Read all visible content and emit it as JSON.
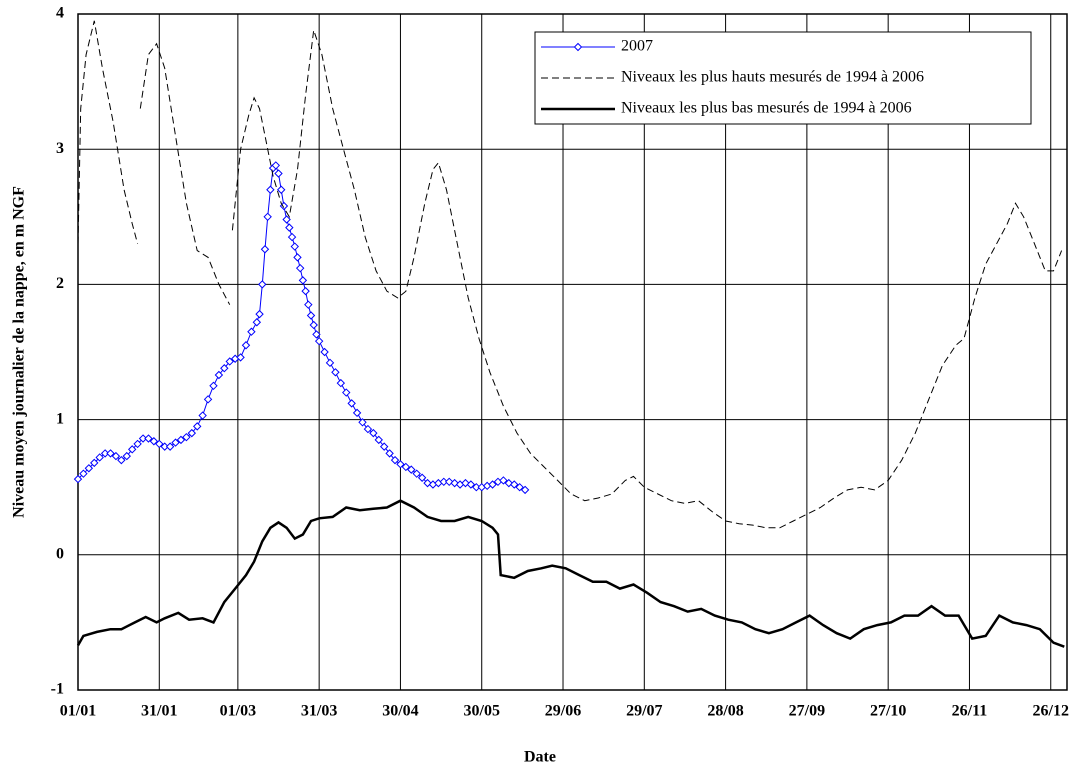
{
  "chart_data": {
    "type": "line",
    "x_label": "Date",
    "y_label": "Niveau moyen journalier de la nappe, en m NGF",
    "xlim": [
      1,
      366
    ],
    "ylim": [
      -1,
      4
    ],
    "xticks": [
      {
        "value": 1,
        "label": "01/01"
      },
      {
        "value": 31,
        "label": "31/01"
      },
      {
        "value": 60,
        "label": "01/03"
      },
      {
        "value": 90,
        "label": "31/03"
      },
      {
        "value": 120,
        "label": "30/04"
      },
      {
        "value": 150,
        "label": "30/05"
      },
      {
        "value": 180,
        "label": "29/06"
      },
      {
        "value": 210,
        "label": "29/07"
      },
      {
        "value": 240,
        "label": "28/08"
      },
      {
        "value": 270,
        "label": "27/09"
      },
      {
        "value": 300,
        "label": "27/10"
      },
      {
        "value": 330,
        "label": "26/11"
      },
      {
        "value": 360,
        "label": "26/12"
      }
    ],
    "yticks": [
      -1,
      0,
      1,
      2,
      3,
      4
    ],
    "grid": true,
    "legend": "top-right",
    "series": [
      {
        "name": "2007",
        "color": "#0000ff",
        "line": "solid",
        "width": 1,
        "marker": "diamond",
        "x": [
          1,
          3,
          5,
          7,
          9,
          11,
          13,
          15,
          17,
          19,
          21,
          23,
          25,
          27,
          29,
          31,
          33,
          35,
          37,
          39,
          41,
          43,
          45,
          47,
          49,
          51,
          53,
          55,
          57,
          59,
          61,
          63,
          65,
          67,
          68,
          69,
          70,
          71,
          72,
          73,
          74,
          75,
          76,
          77,
          78,
          79,
          80,
          81,
          82,
          83,
          84,
          85,
          86,
          87,
          88,
          89,
          90,
          92,
          94,
          96,
          98,
          100,
          102,
          104,
          106,
          108,
          110,
          112,
          114,
          116,
          118,
          120,
          122,
          124,
          126,
          128,
          130,
          132,
          134,
          136,
          138,
          140,
          142,
          144,
          146,
          148,
          150,
          152,
          154,
          156,
          158,
          160,
          162,
          164,
          166
        ],
        "values": [
          0.56,
          0.6,
          0.64,
          0.68,
          0.72,
          0.75,
          0.75,
          0.73,
          0.7,
          0.73,
          0.78,
          0.82,
          0.86,
          0.86,
          0.84,
          0.82,
          0.8,
          0.8,
          0.83,
          0.85,
          0.87,
          0.9,
          0.95,
          1.03,
          1.15,
          1.25,
          1.33,
          1.38,
          1.43,
          1.45,
          1.46,
          1.55,
          1.65,
          1.72,
          1.78,
          2.0,
          2.26,
          2.5,
          2.7,
          2.86,
          2.88,
          2.82,
          2.7,
          2.58,
          2.48,
          2.42,
          2.35,
          2.28,
          2.2,
          2.12,
          2.03,
          1.95,
          1.85,
          1.77,
          1.7,
          1.63,
          1.58,
          1.5,
          1.42,
          1.35,
          1.27,
          1.2,
          1.12,
          1.05,
          0.98,
          0.93,
          0.9,
          0.85,
          0.8,
          0.75,
          0.7,
          0.67,
          0.65,
          0.63,
          0.6,
          0.57,
          0.53,
          0.52,
          0.53,
          0.54,
          0.54,
          0.53,
          0.52,
          0.53,
          0.52,
          0.5,
          0.5,
          0.51,
          0.52,
          0.54,
          0.55,
          0.53,
          0.52,
          0.5,
          0.48
        ]
      },
      {
        "name": "Niveaux les plus hauts mesurés de 1994 à 2006",
        "color": "#000000",
        "line": "dashed",
        "width": 1,
        "marker": null,
        "x": [
          1,
          2,
          4,
          7,
          10,
          14,
          18,
          21,
          23,
          null,
          24,
          27,
          30,
          33,
          37,
          41,
          45,
          49,
          53,
          57,
          null,
          58,
          61,
          64,
          66,
          68,
          70,
          73,
          76,
          79,
          82,
          85,
          88,
          91,
          95,
          99,
          103,
          107,
          111,
          115,
          119,
          122,
          125,
          129,
          132,
          134,
          137,
          141,
          145,
          149,
          153,
          158,
          163,
          168,
          173,
          178,
          183,
          188,
          193,
          198,
          203,
          206,
          210,
          215,
          220,
          225,
          230,
          235,
          240,
          245,
          250,
          255,
          260,
          265,
          270,
          275,
          280,
          285,
          290,
          295,
          300,
          305,
          310,
          315,
          320,
          325,
          328,
          332,
          336,
          340,
          344,
          347,
          350,
          354,
          358,
          361,
          364
        ],
        "values": [
          2.3,
          3.3,
          3.7,
          3.95,
          3.6,
          3.2,
          2.7,
          2.45,
          2.3,
          null,
          3.3,
          3.7,
          3.78,
          3.6,
          3.1,
          2.6,
          2.25,
          2.2,
          2.0,
          1.85,
          null,
          2.4,
          3.0,
          3.25,
          3.38,
          3.3,
          3.1,
          2.8,
          2.6,
          2.5,
          2.85,
          3.4,
          3.88,
          3.7,
          3.3,
          3.0,
          2.7,
          2.35,
          2.1,
          1.95,
          1.9,
          1.95,
          2.2,
          2.6,
          2.85,
          2.9,
          2.7,
          2.3,
          1.9,
          1.6,
          1.35,
          1.1,
          0.9,
          0.75,
          0.65,
          0.55,
          0.45,
          0.4,
          0.42,
          0.45,
          0.55,
          0.58,
          0.5,
          0.45,
          0.4,
          0.38,
          0.4,
          0.32,
          0.25,
          0.23,
          0.22,
          0.2,
          0.2,
          0.25,
          0.3,
          0.35,
          0.42,
          0.48,
          0.5,
          0.48,
          0.55,
          0.7,
          0.9,
          1.15,
          1.4,
          1.55,
          1.6,
          1.9,
          2.15,
          2.3,
          2.45,
          2.6,
          2.5,
          2.3,
          2.1,
          2.1,
          2.25
        ]
      },
      {
        "name": "Niveaux les plus bas mesurés de 1994 à 2006",
        "color": "#000000",
        "line": "solid",
        "width": 2.5,
        "marker": null,
        "x": [
          1,
          3,
          8,
          13,
          17,
          22,
          26,
          30,
          33,
          38,
          42,
          47,
          51,
          55,
          59,
          63,
          66,
          69,
          72,
          75,
          78,
          81,
          84,
          87,
          90,
          95,
          100,
          105,
          110,
          115,
          120,
          125,
          130,
          135,
          140,
          145,
          150,
          154,
          156,
          157,
          162,
          167,
          172,
          176,
          181,
          186,
          191,
          196,
          201,
          206,
          211,
          216,
          221,
          226,
          231,
          236,
          241,
          246,
          251,
          256,
          261,
          266,
          271,
          276,
          281,
          286,
          291,
          296,
          301,
          306,
          311,
          316,
          321,
          326,
          331,
          336,
          341,
          346,
          351,
          356,
          361,
          365
        ],
        "values": [
          -0.67,
          -0.6,
          -0.57,
          -0.55,
          -0.55,
          -0.5,
          -0.46,
          -0.5,
          -0.47,
          -0.43,
          -0.48,
          -0.47,
          -0.5,
          -0.35,
          -0.25,
          -0.15,
          -0.05,
          0.1,
          0.2,
          0.24,
          0.2,
          0.12,
          0.15,
          0.25,
          0.27,
          0.28,
          0.35,
          0.33,
          0.34,
          0.35,
          0.4,
          0.35,
          0.28,
          0.25,
          0.25,
          0.28,
          0.25,
          0.2,
          0.15,
          -0.15,
          -0.17,
          -0.12,
          -0.1,
          -0.08,
          -0.1,
          -0.15,
          -0.2,
          -0.2,
          -0.25,
          -0.22,
          -0.28,
          -0.35,
          -0.38,
          -0.42,
          -0.4,
          -0.45,
          -0.48,
          -0.5,
          -0.55,
          -0.58,
          -0.55,
          -0.5,
          -0.45,
          -0.52,
          -0.58,
          -0.62,
          -0.55,
          -0.52,
          -0.5,
          -0.45,
          -0.45,
          -0.38,
          -0.45,
          -0.45,
          -0.62,
          -0.6,
          -0.45,
          -0.5,
          -0.52,
          -0.55,
          -0.65,
          -0.68
        ]
      }
    ]
  }
}
